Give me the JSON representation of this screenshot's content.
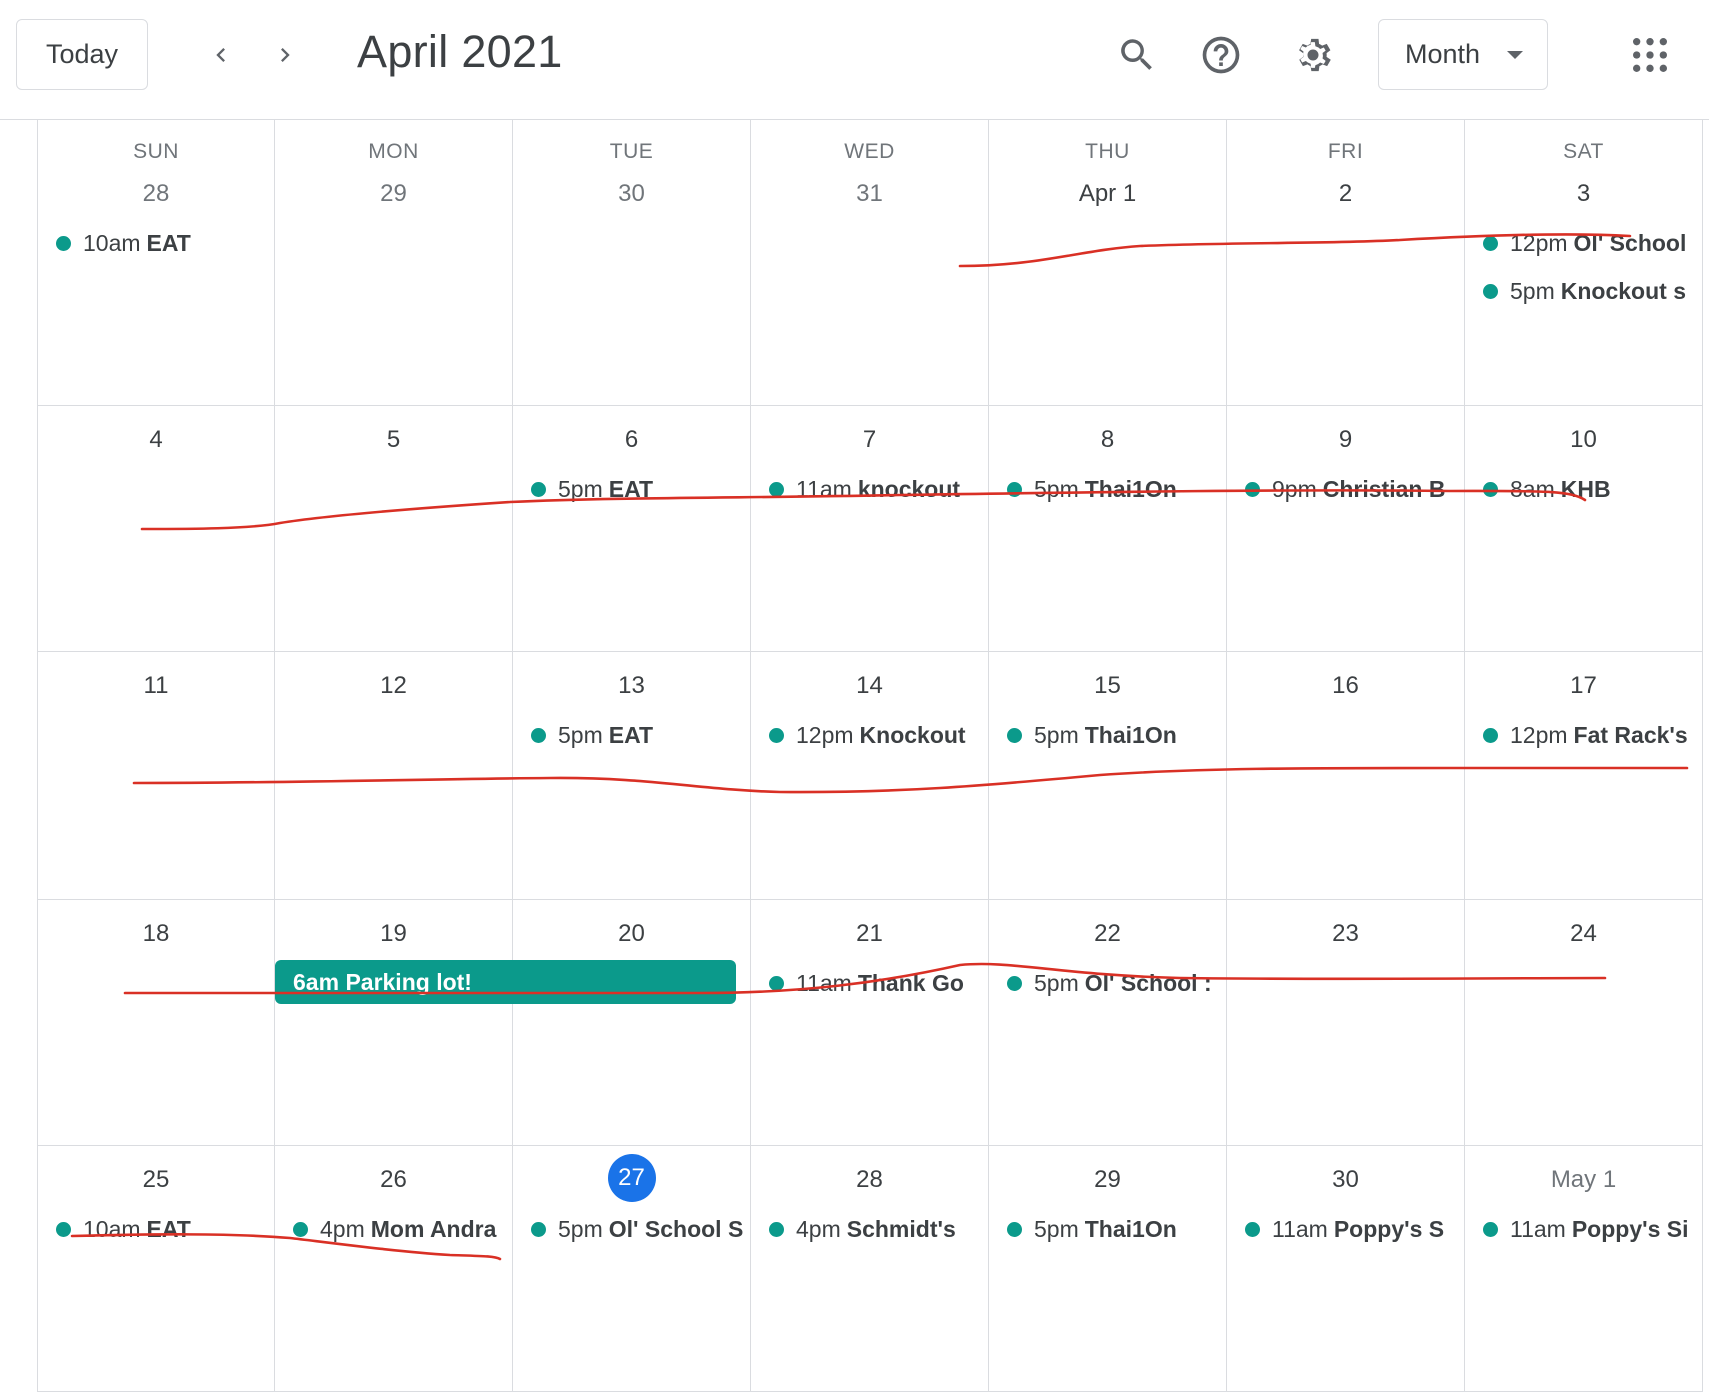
{
  "header": {
    "today_label": "Today",
    "prev_icon": "chevron-left-icon",
    "next_icon": "chevron-right-icon",
    "title": "April 2021",
    "view_label": "Month",
    "icons": [
      "search-icon",
      "help-icon",
      "settings-icon",
      "apps-grid-icon"
    ]
  },
  "colors": {
    "event_teal": "#0b9a8b",
    "today_blue": "#1a73e8",
    "annotation_red": "#d93025"
  },
  "weekdays": [
    "SUN",
    "MON",
    "TUE",
    "WED",
    "THU",
    "FRI",
    "SAT"
  ],
  "weeks": [
    {
      "days": [
        {
          "label": "28",
          "muted": true,
          "events": [
            {
              "time": "10am",
              "title": "EAT"
            }
          ]
        },
        {
          "label": "29",
          "muted": true,
          "events": []
        },
        {
          "label": "30",
          "muted": true,
          "events": []
        },
        {
          "label": "31",
          "muted": true,
          "events": []
        },
        {
          "label": "Apr 1",
          "muted": false,
          "events": []
        },
        {
          "label": "2",
          "muted": false,
          "events": []
        },
        {
          "label": "3",
          "muted": false,
          "events": [
            {
              "time": "12pm",
              "title": "Ol' School"
            },
            {
              "time": "5pm",
              "title": "Knockout s"
            }
          ]
        }
      ]
    },
    {
      "days": [
        {
          "label": "4",
          "events": []
        },
        {
          "label": "5",
          "events": []
        },
        {
          "label": "6",
          "events": [
            {
              "time": "5pm",
              "title": "EAT"
            }
          ]
        },
        {
          "label": "7",
          "events": [
            {
              "time": "11am",
              "title": "knockout"
            }
          ]
        },
        {
          "label": "8",
          "events": [
            {
              "time": "5pm",
              "title": "Thai1On"
            }
          ]
        },
        {
          "label": "9",
          "events": [
            {
              "time": "9pm",
              "title": "Christian B"
            }
          ]
        },
        {
          "label": "10",
          "events": [
            {
              "time": "8am",
              "title": "KHB"
            }
          ]
        }
      ]
    },
    {
      "days": [
        {
          "label": "11",
          "events": []
        },
        {
          "label": "12",
          "events": []
        },
        {
          "label": "13",
          "events": [
            {
              "time": "5pm",
              "title": "EAT"
            }
          ]
        },
        {
          "label": "14",
          "events": [
            {
              "time": "12pm",
              "title": "Knockout"
            }
          ]
        },
        {
          "label": "15",
          "events": [
            {
              "time": "5pm",
              "title": "Thai1On"
            }
          ]
        },
        {
          "label": "16",
          "events": []
        },
        {
          "label": "17",
          "events": [
            {
              "time": "12pm",
              "title": "Fat Rack's"
            }
          ]
        }
      ]
    },
    {
      "days": [
        {
          "label": "18",
          "events": []
        },
        {
          "label": "19",
          "events": []
        },
        {
          "label": "20",
          "events": []
        },
        {
          "label": "21",
          "events": [
            {
              "time": "11am",
              "title": "Thank Go"
            }
          ]
        },
        {
          "label": "22",
          "events": [
            {
              "time": "5pm",
              "title": "Ol' School :"
            }
          ]
        },
        {
          "label": "23",
          "events": []
        },
        {
          "label": "24",
          "events": []
        }
      ],
      "spanning_event": {
        "time": "6am",
        "title": "Parking lot!"
      }
    },
    {
      "days": [
        {
          "label": "25",
          "events": [
            {
              "time": "10am",
              "title": "EAT"
            }
          ]
        },
        {
          "label": "26",
          "events": [
            {
              "time": "4pm",
              "title": "Mom Andra"
            }
          ]
        },
        {
          "label": "27",
          "today": true,
          "events": [
            {
              "time": "5pm",
              "title": "Ol' School S"
            }
          ]
        },
        {
          "label": "28",
          "events": [
            {
              "time": "4pm",
              "title": "Schmidt's"
            }
          ]
        },
        {
          "label": "29",
          "events": [
            {
              "time": "5pm",
              "title": "Thai1On"
            }
          ]
        },
        {
          "label": "30",
          "events": [
            {
              "time": "11am",
              "title": "Poppy's S"
            }
          ]
        },
        {
          "label": "May 1",
          "muted": true,
          "events": [
            {
              "time": "11am",
              "title": "Poppy's Si"
            }
          ]
        }
      ]
    }
  ]
}
